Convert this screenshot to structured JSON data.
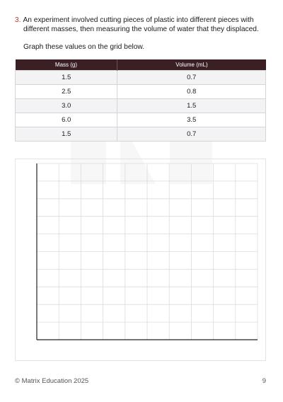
{
  "question": {
    "number": "3.",
    "text_line1": "An experiment involved cutting pieces of plastic into different pieces with",
    "text_line2": "different masses, then measuring the volume of water that they displaced.",
    "instruction": "Graph these values on the grid below."
  },
  "table": {
    "headers": [
      "Mass (g)",
      "Volume (mL)"
    ],
    "rows": [
      [
        "1.5",
        "0.7"
      ],
      [
        "2.5",
        "0.8"
      ],
      [
        "3.0",
        "1.5"
      ],
      [
        "6.0",
        "3.5"
      ],
      [
        "1.5",
        "0.7"
      ]
    ]
  },
  "colors": {
    "question_number": "#c0392b",
    "table_header_bg": "#3a1f24",
    "grid_line": "#dcdcdc",
    "axis_line": "#222222"
  },
  "footer": {
    "copyright": "© Matrix Education 2025",
    "page_number": "9"
  }
}
